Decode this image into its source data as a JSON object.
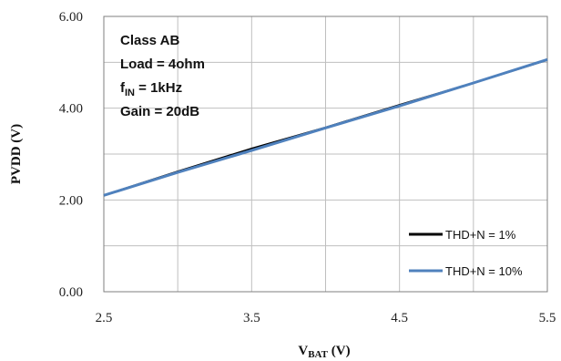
{
  "chart_data": {
    "type": "line",
    "xlabel": {
      "main": "V",
      "sub": "BAT",
      "suffix": " (V)"
    },
    "ylabel": "PVDD (V)",
    "xlim": [
      2.5,
      5.5
    ],
    "ylim": [
      0,
      6
    ],
    "x_ticks": [
      "2.5",
      "3.5",
      "4.5",
      "5.5"
    ],
    "x_tick_values": [
      2.5,
      3.5,
      4.5,
      5.5
    ],
    "x_grid_step": 0.5,
    "y_ticks": [
      "0.00",
      "2.00",
      "4.00",
      "6.00"
    ],
    "y_tick_values": [
      0,
      2,
      4,
      6
    ],
    "y_grid_step": 1,
    "grid": true,
    "annotation": {
      "line1": "Class AB",
      "line2": "Load = 4ohm",
      "line3_main": "f",
      "line3_sub": "IN",
      "line3_rest": " = 1kHz",
      "line4": "Gain = 20dB"
    },
    "legend_position": "bottom-right",
    "series": [
      {
        "name": "THD+N = 1%",
        "color": "#000000",
        "x": [
          2.5,
          3.0,
          3.5,
          4.0,
          4.5,
          5.0,
          5.5
        ],
        "y": [
          2.1,
          2.62,
          3.12,
          3.58,
          4.07,
          4.55,
          5.05
        ]
      },
      {
        "name": "THD+N = 10%",
        "color": "#4f81bd",
        "x": [
          2.5,
          3.0,
          3.5,
          4.0,
          4.5,
          5.0,
          5.5
        ],
        "y": [
          2.1,
          2.6,
          3.08,
          3.57,
          4.05,
          4.55,
          5.06
        ]
      }
    ]
  }
}
